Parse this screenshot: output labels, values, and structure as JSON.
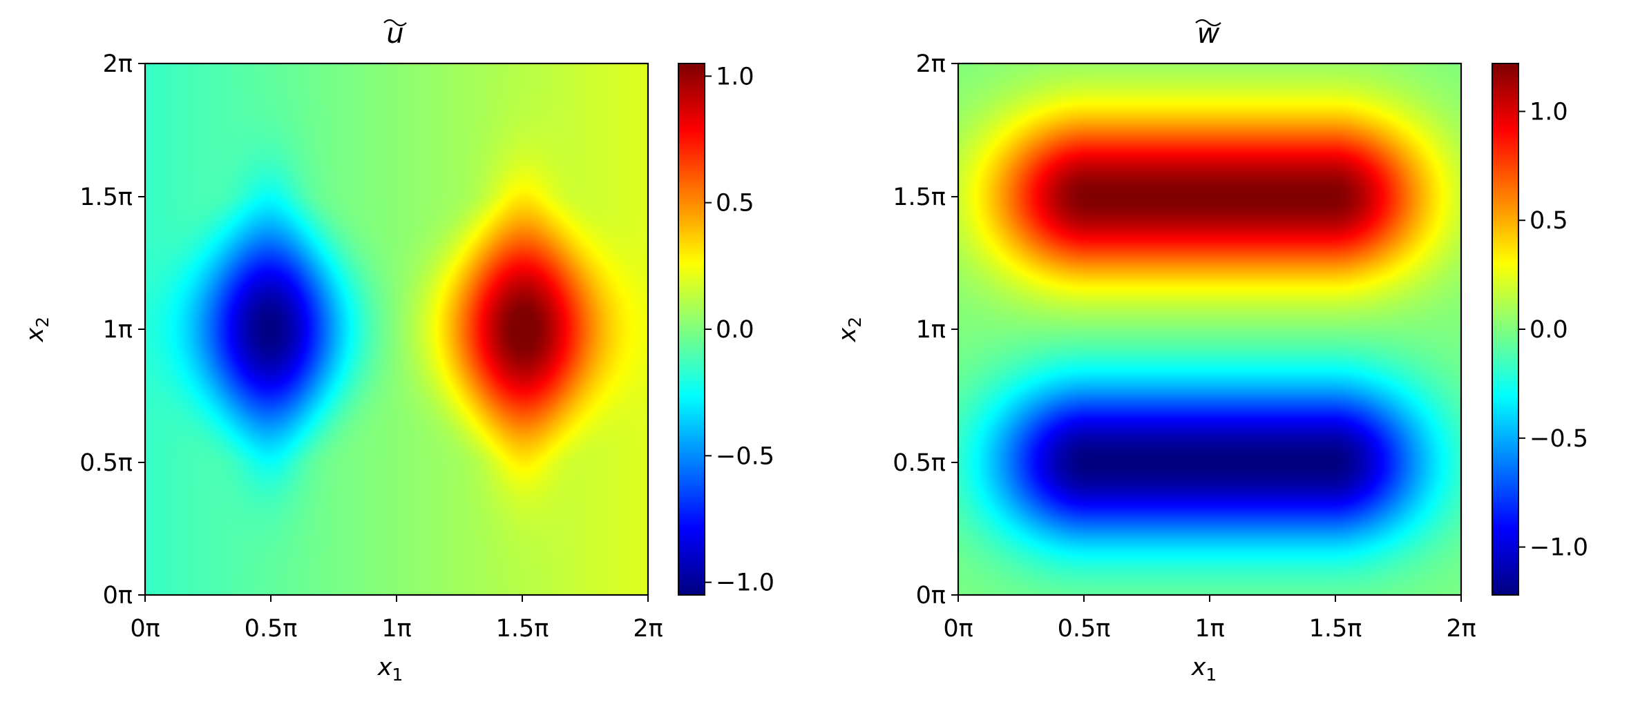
{
  "chart_data": [
    {
      "type": "heatmap",
      "title": "u",
      "title_decoration": "tilde",
      "xlabel": "x",
      "xlabel_sub": "1",
      "ylabel": "x",
      "ylabel_sub": "2",
      "x_ticks": [
        "0π",
        "0.5π",
        "1π",
        "1.5π",
        "2π"
      ],
      "y_ticks": [
        "0π",
        "0.5π",
        "1π",
        "1.5π",
        "2π"
      ],
      "xlim": [
        0,
        6.2832
      ],
      "ylim": [
        0,
        6.2832
      ],
      "colormap": "jet",
      "clim": [
        -1.05,
        1.05
      ],
      "colorbar_ticks": [
        {
          "value": -1.0,
          "label": "−1.0"
        },
        {
          "value": -0.5,
          "label": "−0.5"
        },
        {
          "value": 0.0,
          "label": "0.0"
        },
        {
          "value": 0.5,
          "label": "0.5"
        },
        {
          "value": 1.0,
          "label": "1.0"
        }
      ],
      "field": {
        "extrema": [
          {
            "x": 1.5708,
            "y": 3.1416,
            "value": -1.0
          },
          {
            "x": 4.7124,
            "y": 3.1416,
            "value": 1.0
          }
        ],
        "background_gradient": {
          "left": -0.15,
          "right": 0.2
        }
      }
    },
    {
      "type": "heatmap",
      "title": "w",
      "title_decoration": "tilde",
      "xlabel": "x",
      "xlabel_sub": "1",
      "ylabel": "x",
      "ylabel_sub": "2",
      "x_ticks": [
        "0π",
        "0.5π",
        "1π",
        "1.5π",
        "2π"
      ],
      "y_ticks": [
        "0π",
        "0.5π",
        "1π",
        "1.5π",
        "2π"
      ],
      "xlim": [
        0,
        6.2832
      ],
      "ylim": [
        0,
        6.2832
      ],
      "colormap": "jet",
      "clim": [
        -1.22,
        1.22
      ],
      "colorbar_ticks": [
        {
          "value": -1.0,
          "label": "−1.0"
        },
        {
          "value": -0.5,
          "label": "−0.5"
        },
        {
          "value": 0.0,
          "label": "0.0"
        },
        {
          "value": 0.5,
          "label": "0.5"
        },
        {
          "value": 1.0,
          "label": "1.0"
        }
      ],
      "field": {
        "extrema": [
          {
            "x": 3.1416,
            "y": 4.7124,
            "value": 1.22
          },
          {
            "x": 3.1416,
            "y": 1.5708,
            "value": -1.22
          }
        ]
      }
    }
  ]
}
